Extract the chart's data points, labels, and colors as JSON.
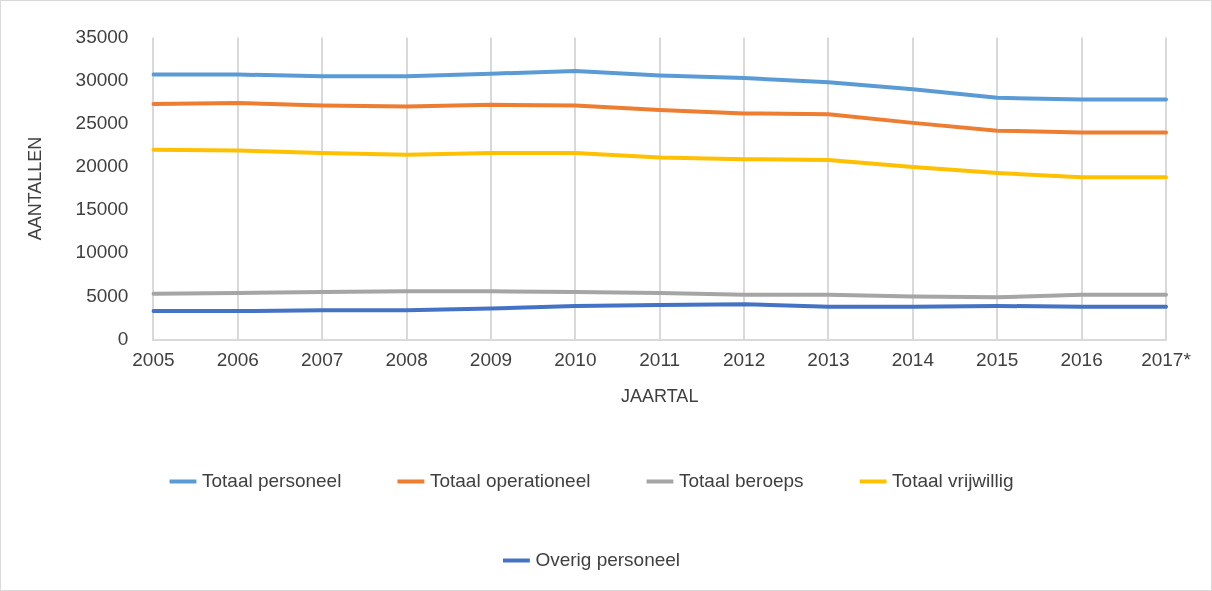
{
  "chart_data": {
    "type": "line",
    "xlabel": "JAARTAL",
    "ylabel": "AANTALLEN",
    "categories": [
      "2005",
      "2006",
      "2007",
      "2008",
      "2009",
      "2010",
      "2011",
      "2012",
      "2013",
      "2014",
      "2015",
      "2016",
      "2017*"
    ],
    "series": [
      {
        "name": "Totaal personeel",
        "color": "#5b9bd5",
        "values": [
          30700,
          30700,
          30500,
          30500,
          30800,
          31100,
          30600,
          30300,
          29800,
          29000,
          28000,
          27800,
          27800
        ]
      },
      {
        "name": "Totaal operationeel",
        "color": "#ed7d31",
        "values": [
          27300,
          27400,
          27100,
          27000,
          27200,
          27100,
          26600,
          26200,
          26100,
          25100,
          24200,
          24000,
          24000
        ]
      },
      {
        "name": "Totaal beroeps",
        "color": "#a5a5a5",
        "values": [
          5300,
          5400,
          5500,
          5600,
          5600,
          5500,
          5400,
          5200,
          5200,
          5000,
          4900,
          5200,
          5200
        ]
      },
      {
        "name": "Totaal vrijwillig",
        "color": "#ffc000",
        "values": [
          22000,
          21900,
          21600,
          21400,
          21600,
          21600,
          21100,
          20900,
          20800,
          20000,
          19300,
          18800,
          18800
        ]
      },
      {
        "name": "Overig personeel",
        "color": "#4472c4",
        "values": [
          3300,
          3300,
          3400,
          3400,
          3600,
          3900,
          4000,
          4100,
          3800,
          3800,
          3900,
          3800,
          3800
        ]
      }
    ],
    "ylim": [
      0,
      35000
    ],
    "yticks": [
      0,
      5000,
      10000,
      15000,
      20000,
      25000,
      30000,
      35000
    ],
    "grid": "x",
    "legend": "bottom",
    "marker": "none",
    "line_style": "solid"
  }
}
